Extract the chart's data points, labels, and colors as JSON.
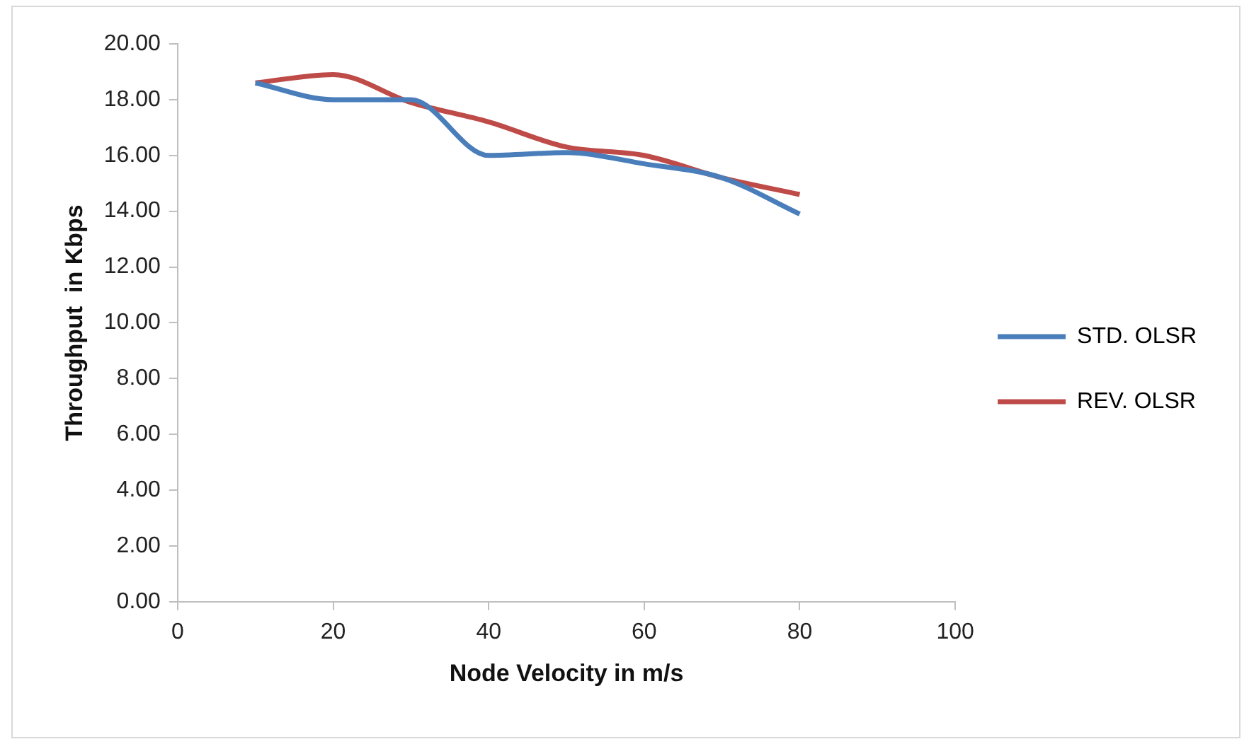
{
  "chart_data": {
    "type": "line",
    "xlabel": "Node Velocity in m/s",
    "ylabel": "Throughput  in Kbps",
    "x": [
      10,
      20,
      30,
      40,
      50,
      60,
      70,
      80
    ],
    "series": [
      {
        "name": "STD. OLSR",
        "color": "#4a7ebb",
        "values": [
          18.6,
          18.0,
          18.0,
          16.0,
          16.1,
          15.7,
          15.2,
          13.9
        ]
      },
      {
        "name": "REV. OLSR",
        "color": "#be4b48",
        "values": [
          18.6,
          18.9,
          17.9,
          17.2,
          16.3,
          16.0,
          15.2,
          14.6
        ]
      }
    ],
    "xlim": [
      0,
      100
    ],
    "xticks": [
      0,
      20,
      40,
      60,
      80,
      100
    ],
    "ylim": [
      0,
      20
    ],
    "yticks": [
      {
        "value": 0,
        "label": "0.00"
      },
      {
        "value": 2,
        "label": "2.00"
      },
      {
        "value": 4,
        "label": "4.00"
      },
      {
        "value": 6,
        "label": "6.00"
      },
      {
        "value": 8,
        "label": "8.00"
      },
      {
        "value": 10,
        "label": "10.00"
      },
      {
        "value": 12,
        "label": "12.00"
      },
      {
        "value": 14,
        "label": "14.00"
      },
      {
        "value": 16,
        "label": "16.00"
      },
      {
        "value": 18,
        "label": "18.00"
      },
      {
        "value": 20,
        "label": "20.00"
      }
    ],
    "grid": false,
    "legend": "right",
    "marker": "none",
    "line_style": "solid"
  }
}
